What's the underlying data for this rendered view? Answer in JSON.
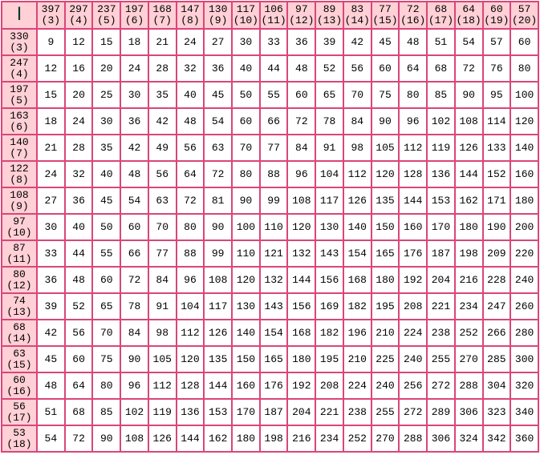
{
  "corner_label": "I",
  "columns": [
    {
      "top": "397",
      "sub": "(3)"
    },
    {
      "top": "297",
      "sub": "(4)"
    },
    {
      "top": "237",
      "sub": "(5)"
    },
    {
      "top": "197",
      "sub": "(6)"
    },
    {
      "top": "168",
      "sub": "(7)"
    },
    {
      "top": "147",
      "sub": "(8)"
    },
    {
      "top": "130",
      "sub": "(9)"
    },
    {
      "top": "117",
      "sub": "(10)"
    },
    {
      "top": "106",
      "sub": "(11)"
    },
    {
      "top": "97",
      "sub": "(12)"
    },
    {
      "top": "89",
      "sub": "(13)"
    },
    {
      "top": "83",
      "sub": "(14)"
    },
    {
      "top": "77",
      "sub": "(15)"
    },
    {
      "top": "72",
      "sub": "(16)"
    },
    {
      "top": "68",
      "sub": "(17)"
    },
    {
      "top": "64",
      "sub": "(18)"
    },
    {
      "top": "60",
      "sub": "(19)"
    },
    {
      "top": "57",
      "sub": "(20)"
    }
  ],
  "rows": [
    {
      "top": "330",
      "sub": "(3)",
      "values": [
        9,
        12,
        15,
        18,
        21,
        24,
        27,
        30,
        33,
        36,
        39,
        42,
        45,
        48,
        51,
        54,
        57,
        60
      ]
    },
    {
      "top": "247",
      "sub": "(4)",
      "values": [
        12,
        16,
        20,
        24,
        28,
        32,
        36,
        40,
        44,
        48,
        52,
        56,
        60,
        64,
        68,
        72,
        76,
        80
      ]
    },
    {
      "top": "197",
      "sub": "(5)",
      "values": [
        15,
        20,
        25,
        30,
        35,
        40,
        45,
        50,
        55,
        60,
        65,
        70,
        75,
        80,
        85,
        90,
        95,
        100
      ]
    },
    {
      "top": "163",
      "sub": "(6)",
      "values": [
        18,
        24,
        30,
        36,
        42,
        48,
        54,
        60,
        66,
        72,
        78,
        84,
        90,
        96,
        102,
        108,
        114,
        120
      ]
    },
    {
      "top": "140",
      "sub": "(7)",
      "values": [
        21,
        28,
        35,
        42,
        49,
        56,
        63,
        70,
        77,
        84,
        91,
        98,
        105,
        112,
        119,
        126,
        133,
        140
      ]
    },
    {
      "top": "122",
      "sub": "(8)",
      "values": [
        24,
        32,
        40,
        48,
        56,
        64,
        72,
        80,
        88,
        96,
        104,
        112,
        120,
        128,
        136,
        144,
        152,
        160
      ]
    },
    {
      "top": "108",
      "sub": "(9)",
      "values": [
        27,
        36,
        45,
        54,
        63,
        72,
        81,
        90,
        99,
        108,
        117,
        126,
        135,
        144,
        153,
        162,
        171,
        180
      ]
    },
    {
      "top": "97",
      "sub": "(10)",
      "values": [
        30,
        40,
        50,
        60,
        70,
        80,
        90,
        100,
        110,
        120,
        130,
        140,
        150,
        160,
        170,
        180,
        190,
        200
      ]
    },
    {
      "top": "87",
      "sub": "(11)",
      "values": [
        33,
        44,
        55,
        66,
        77,
        88,
        99,
        110,
        121,
        132,
        143,
        154,
        165,
        176,
        187,
        198,
        209,
        220
      ]
    },
    {
      "top": "80",
      "sub": "(12)",
      "values": [
        36,
        48,
        60,
        72,
        84,
        96,
        108,
        120,
        132,
        144,
        156,
        168,
        180,
        192,
        204,
        216,
        228,
        240
      ]
    },
    {
      "top": "74",
      "sub": "(13)",
      "values": [
        39,
        52,
        65,
        78,
        91,
        104,
        117,
        130,
        143,
        156,
        169,
        182,
        195,
        208,
        221,
        234,
        247,
        260
      ]
    },
    {
      "top": "68",
      "sub": "(14)",
      "values": [
        42,
        56,
        70,
        84,
        98,
        112,
        126,
        140,
        154,
        168,
        182,
        196,
        210,
        224,
        238,
        252,
        266,
        280
      ]
    },
    {
      "top": "63",
      "sub": "(15)",
      "values": [
        45,
        60,
        75,
        90,
        105,
        120,
        135,
        150,
        165,
        180,
        195,
        210,
        225,
        240,
        255,
        270,
        285,
        300
      ]
    },
    {
      "top": "60",
      "sub": "(16)",
      "values": [
        48,
        64,
        80,
        96,
        112,
        128,
        144,
        160,
        176,
        192,
        208,
        224,
        240,
        256,
        272,
        288,
        304,
        320
      ]
    },
    {
      "top": "56",
      "sub": "(17)",
      "values": [
        51,
        68,
        85,
        102,
        119,
        136,
        153,
        170,
        187,
        204,
        221,
        238,
        255,
        272,
        289,
        306,
        323,
        340
      ]
    },
    {
      "top": "53",
      "sub": "(18)",
      "values": [
        54,
        72,
        90,
        108,
        126,
        144,
        162,
        180,
        198,
        216,
        234,
        252,
        270,
        288,
        306,
        324,
        342,
        360
      ]
    }
  ],
  "colors": {
    "header_bg": "#ffd0d6",
    "border": "#d9467a",
    "corner_text": "#0a3a2a"
  }
}
